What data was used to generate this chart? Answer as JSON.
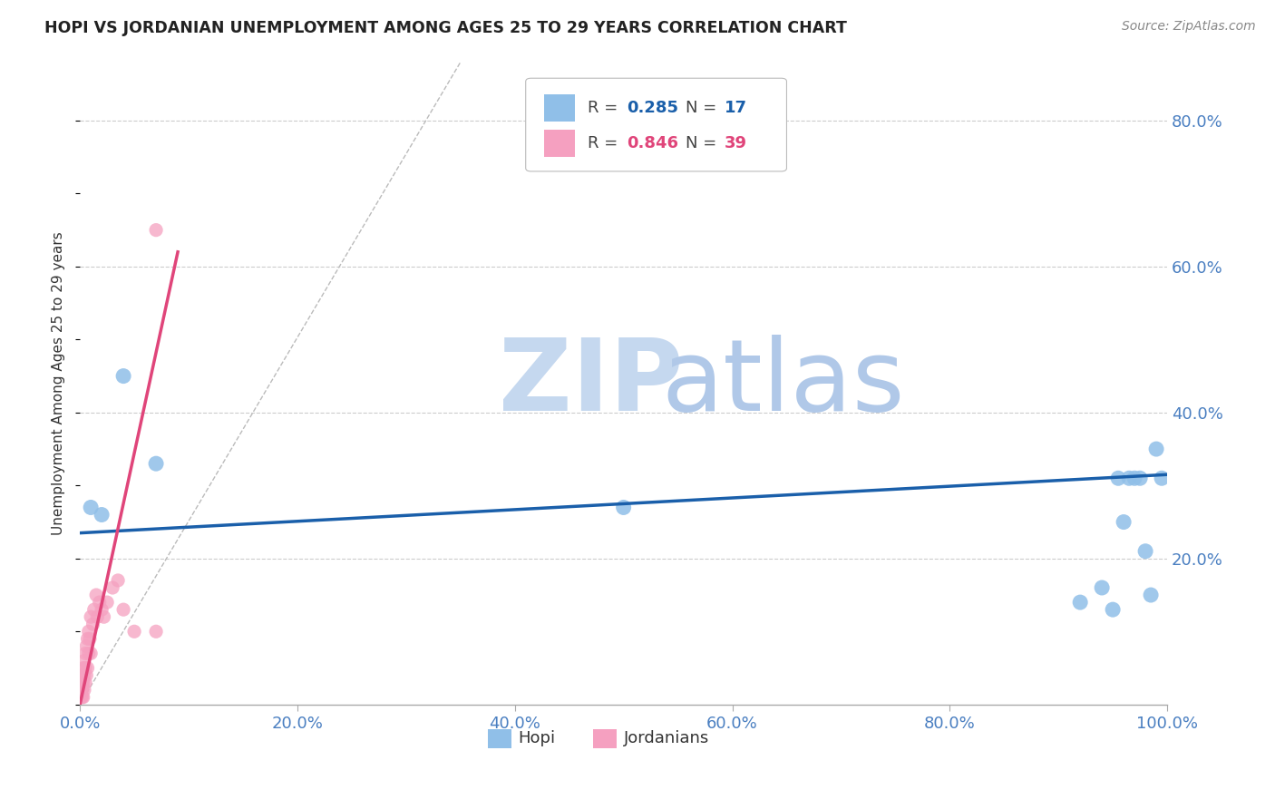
{
  "title": "HOPI VS JORDANIAN UNEMPLOYMENT AMONG AGES 25 TO 29 YEARS CORRELATION CHART",
  "source": "Source: ZipAtlas.com",
  "ylabel": "Unemployment Among Ages 25 to 29 years",
  "xlim": [
    0.0,
    1.0
  ],
  "ylim": [
    0.0,
    0.88
  ],
  "xticks": [
    0.0,
    0.2,
    0.4,
    0.6,
    0.8,
    1.0
  ],
  "yticks": [
    0.2,
    0.4,
    0.6,
    0.8
  ],
  "ytick_labels": [
    "20.0%",
    "40.0%",
    "60.0%",
    "80.0%"
  ],
  "xtick_labels": [
    "0.0%",
    "20.0%",
    "40.0%",
    "60.0%",
    "80.0%",
    "100.0%"
  ],
  "hopi_x": [
    0.01,
    0.02,
    0.04,
    0.07,
    0.92,
    0.94,
    0.95,
    0.955,
    0.96,
    0.965,
    0.97,
    0.975,
    0.98,
    0.985,
    0.99,
    0.995,
    0.5
  ],
  "hopi_y": [
    0.27,
    0.26,
    0.45,
    0.33,
    0.14,
    0.16,
    0.13,
    0.31,
    0.25,
    0.31,
    0.31,
    0.31,
    0.21,
    0.15,
    0.35,
    0.31,
    0.27
  ],
  "jordanian_x": [
    0.001,
    0.001,
    0.001,
    0.002,
    0.002,
    0.002,
    0.002,
    0.003,
    0.003,
    0.003,
    0.004,
    0.004,
    0.004,
    0.005,
    0.005,
    0.005,
    0.006,
    0.006,
    0.007,
    0.007,
    0.008,
    0.008,
    0.009,
    0.01,
    0.01,
    0.012,
    0.013,
    0.015,
    0.016,
    0.018,
    0.02,
    0.022,
    0.025,
    0.03,
    0.035,
    0.04,
    0.05,
    0.07,
    0.07
  ],
  "jordanian_y": [
    0.01,
    0.02,
    0.03,
    0.01,
    0.02,
    0.03,
    0.04,
    0.01,
    0.03,
    0.05,
    0.02,
    0.04,
    0.06,
    0.03,
    0.05,
    0.07,
    0.04,
    0.08,
    0.05,
    0.09,
    0.07,
    0.1,
    0.09,
    0.07,
    0.12,
    0.11,
    0.13,
    0.15,
    0.12,
    0.14,
    0.13,
    0.12,
    0.14,
    0.16,
    0.17,
    0.13,
    0.1,
    0.1,
    0.65
  ],
  "hopi_color": "#90bfe8",
  "jordanian_color": "#f5a0c0",
  "hopi_line_color": "#1a5faa",
  "jordanian_line_color": "#e0457a",
  "hopi_R": 0.285,
  "hopi_N": 17,
  "jordanian_R": 0.846,
  "jordanian_N": 39,
  "watermark_zip_color": "#c5d8ef",
  "watermark_atlas_color": "#b0c8e8",
  "background_color": "#ffffff",
  "grid_color": "#cccccc",
  "axis_color": "#4a7fc1",
  "title_color": "#222222"
}
